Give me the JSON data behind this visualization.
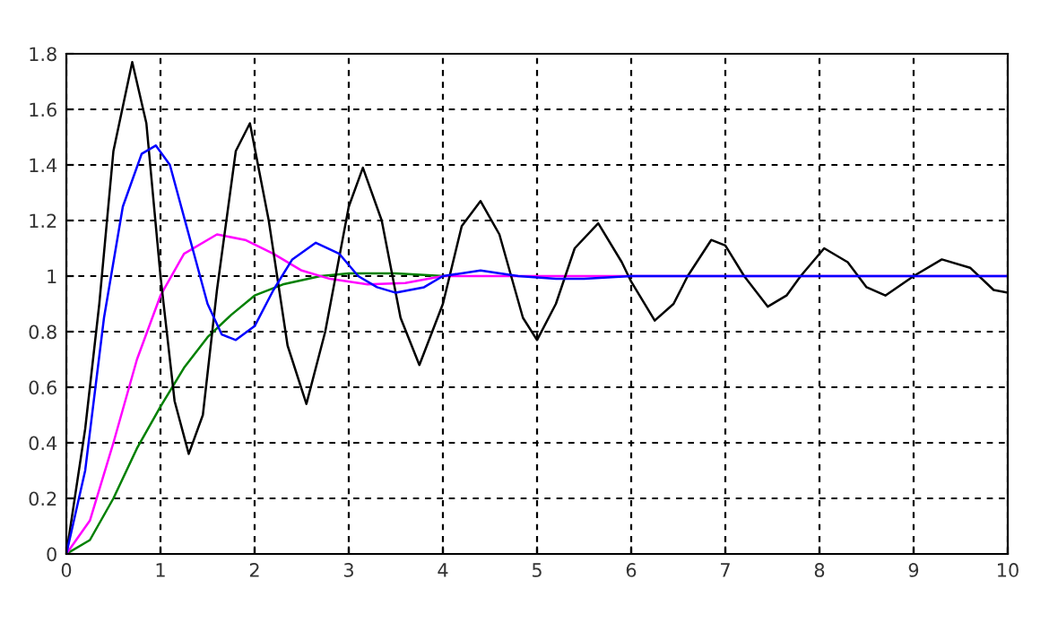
{
  "chart_data": {
    "type": "line",
    "xlim": [
      0,
      10
    ],
    "ylim": [
      0,
      1.8
    ],
    "xticks": [
      0,
      1,
      2,
      3,
      4,
      5,
      6,
      7,
      8,
      9,
      10
    ],
    "yticks": [
      0,
      0.2,
      0.4,
      0.6,
      0.8,
      1,
      1.2,
      1.4,
      1.6,
      1.8
    ],
    "grid": true,
    "legend": false,
    "marker": "none",
    "line_style": "solid",
    "series": [
      {
        "color": "#008000",
        "x": [
          0,
          0.25,
          0.5,
          0.75,
          1.0,
          1.25,
          1.5,
          1.75,
          2.0,
          2.3,
          2.7,
          3.0,
          3.5,
          4.0
        ],
        "values": [
          0,
          0.05,
          0.2,
          0.38,
          0.53,
          0.67,
          0.78,
          0.86,
          0.93,
          0.97,
          1.0,
          1.01,
          1.01,
          1.0
        ]
      },
      {
        "color": "#ff00ff",
        "x": [
          0,
          0.25,
          0.5,
          0.75,
          1.0,
          1.25,
          1.6,
          1.9,
          2.2,
          2.5,
          2.8,
          3.2,
          3.6,
          4.0,
          4.5,
          10
        ],
        "values": [
          0,
          0.12,
          0.4,
          0.7,
          0.93,
          1.08,
          1.15,
          1.13,
          1.08,
          1.02,
          0.99,
          0.97,
          0.975,
          1.0,
          1.0,
          1.0
        ]
      },
      {
        "color": "#000000",
        "x": [
          0,
          0.2,
          0.35,
          0.5,
          0.7,
          0.85,
          1.0,
          1.15,
          1.3,
          1.45,
          1.6,
          1.8,
          1.95,
          2.15,
          2.35,
          2.55,
          2.75,
          3.0,
          3.15,
          3.35,
          3.55,
          3.75,
          4.0,
          4.2,
          4.4,
          4.6,
          4.85,
          5.0,
          5.2,
          5.4,
          5.65,
          5.9,
          6.0,
          6.25,
          6.45,
          6.6,
          6.85,
          7.0,
          7.2,
          7.45,
          7.65,
          7.8,
          8.05,
          8.3,
          8.5,
          8.7,
          9.0,
          9.3,
          9.6,
          9.85,
          10
        ],
        "values": [
          0,
          0.45,
          0.9,
          1.45,
          1.77,
          1.55,
          1.0,
          0.55,
          0.36,
          0.5,
          0.95,
          1.45,
          1.55,
          1.2,
          0.75,
          0.54,
          0.8,
          1.25,
          1.39,
          1.2,
          0.85,
          0.68,
          0.9,
          1.18,
          1.27,
          1.15,
          0.85,
          0.77,
          0.9,
          1.1,
          1.19,
          1.05,
          0.98,
          0.84,
          0.9,
          1.0,
          1.13,
          1.11,
          1.0,
          0.89,
          0.93,
          1.0,
          1.1,
          1.05,
          0.96,
          0.93,
          1.0,
          1.06,
          1.03,
          0.95,
          0.94
        ]
      },
      {
        "color": "#0000ff",
        "x": [
          0,
          0.2,
          0.4,
          0.6,
          0.8,
          0.95,
          1.1,
          1.3,
          1.5,
          1.65,
          1.8,
          2.0,
          2.2,
          2.4,
          2.65,
          2.9,
          3.1,
          3.3,
          3.5,
          3.8,
          4.0,
          4.4,
          4.8,
          5.2,
          5.5,
          6.0,
          10
        ],
        "values": [
          0,
          0.3,
          0.85,
          1.25,
          1.44,
          1.47,
          1.4,
          1.15,
          0.9,
          0.79,
          0.77,
          0.82,
          0.95,
          1.06,
          1.12,
          1.08,
          1.0,
          0.96,
          0.94,
          0.96,
          1.0,
          1.02,
          1.0,
          0.99,
          0.99,
          1.0,
          1.0
        ]
      }
    ]
  }
}
